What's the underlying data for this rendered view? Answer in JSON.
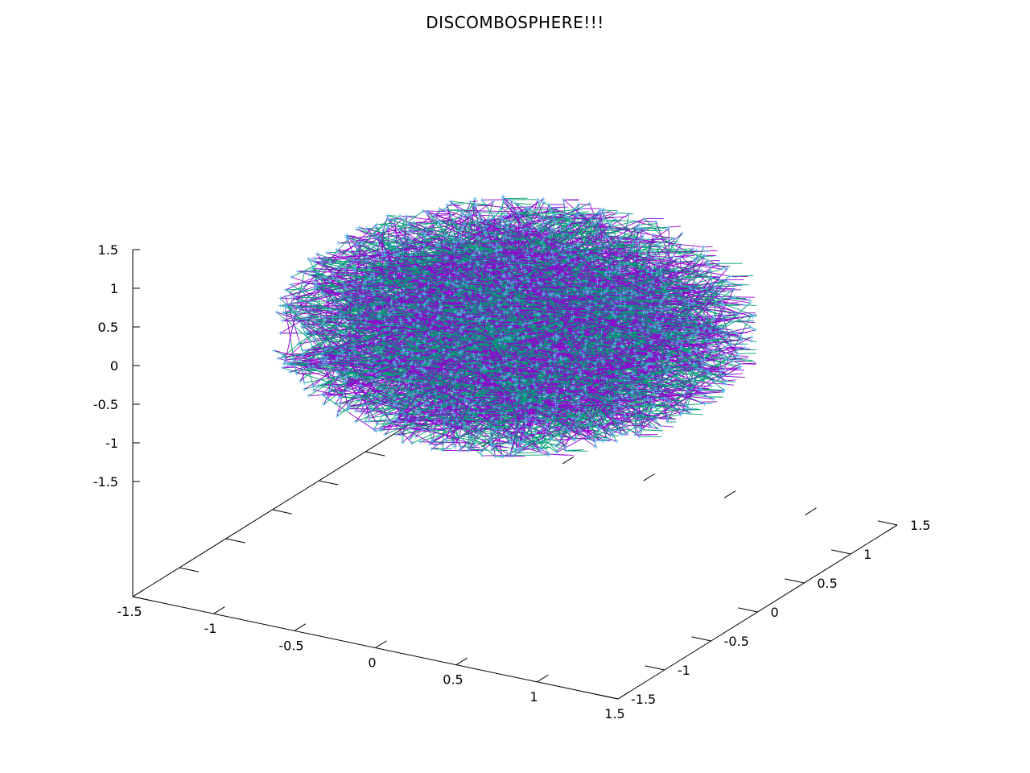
{
  "chart_data": {
    "type": "scatter",
    "title": "DISCOMBOSPHERE!!!",
    "xlabel": "",
    "ylabel": "",
    "zlabel": "",
    "xlim": [
      -1.5,
      1.5
    ],
    "ylim": [
      -1.5,
      1.5
    ],
    "zlim": [
      -1.5,
      1.5
    ],
    "x_ticks": [
      "-1.5",
      "-1",
      "-0.5",
      "0",
      "0.5",
      "1",
      "1.5"
    ],
    "y_ticks": [
      "-1.5",
      "-1",
      "-0.5",
      "0",
      "0.5",
      "1",
      "1.5"
    ],
    "z_ticks": [
      "-1.5",
      "-1",
      "-0.5",
      "0",
      "0.5",
      "1",
      "1.5"
    ],
    "view": "3d",
    "grid": false,
    "legend": "none",
    "shape": "disc of random points on the unit circle, connected by line segments, at z ≈ 0.5",
    "disc_radius": 1.0,
    "disc_z": 0.5,
    "point_count_approx": 2000,
    "colors": {
      "line_a": "#9400d3",
      "line_b": "#009e73",
      "line_c": "#56b4e9",
      "axis": "#000000"
    }
  }
}
